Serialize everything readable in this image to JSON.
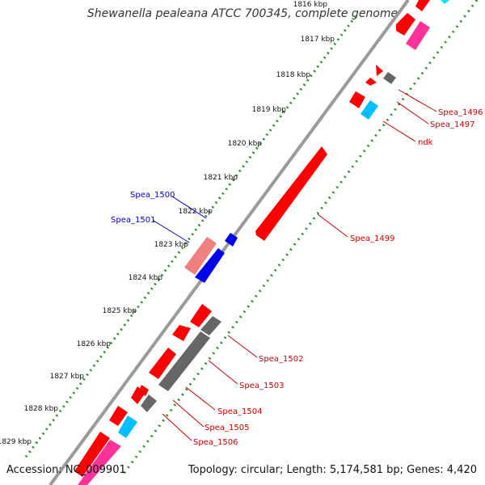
{
  "title": "Shewanella pealeana ATCC 700345, complete genome",
  "accession": "Accession: NC_009901",
  "summary": "Topology: circular; Length: 5,174,581 bp; Genes: 4,420",
  "colors": {
    "backbone": "#8a8a8a",
    "tick_dots": "#2e8b2e",
    "cds_red": "#ff0000",
    "cds_grey": "#666666",
    "cds_blue": "#0000ee",
    "cds_cyan": "#00bfff",
    "cds_pink": "#ff3399",
    "cds_salmon": "#f08080",
    "label_red": "#cc0000",
    "label_blue": "#0000cc"
  },
  "ticks": [
    "1816 kbp",
    "1817 kbp",
    "1818 kbp",
    "1819 kbp",
    "1820 kbp",
    "1821 kbp",
    "1822 kbp",
    "1823 kbp",
    "1824 kbp",
    "1825 kbp",
    "1826 kbp",
    "1827 kbp",
    "1828 kbp",
    "1829 kbp"
  ],
  "gene_labels": [
    "Spea_1496",
    "Spea_1497",
    "ndk",
    "Spea_1499",
    "Spea_1500",
    "Spea_1501",
    "Spea_1502",
    "Spea_1503",
    "Spea_1504",
    "Spea_1505",
    "Spea_1506"
  ]
}
